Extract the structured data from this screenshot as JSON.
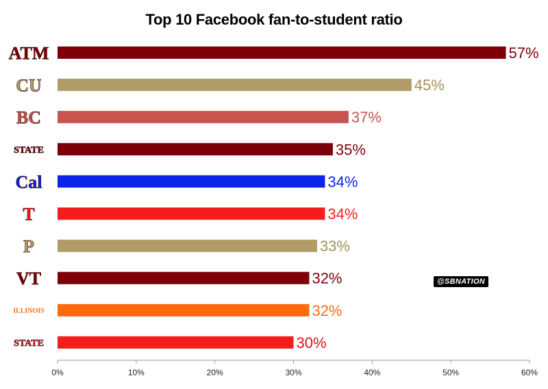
{
  "chart_data": {
    "type": "bar",
    "orientation": "horizontal",
    "title": "Top 10 Facebook fan-to-student ratio",
    "xlabel": "",
    "ylabel": "",
    "xlim": [
      0,
      60
    ],
    "x_ticks": [
      "0%",
      "10%",
      "20%",
      "30%",
      "40%",
      "50%",
      "60%"
    ],
    "grid": false,
    "categories": [
      "ATM",
      "CU",
      "BC",
      "STATE",
      "Cal",
      "T",
      "P",
      "VT",
      "ILLINOIS",
      "STATE"
    ],
    "values": [
      57,
      45,
      37,
      35,
      34,
      34,
      33,
      32,
      32,
      30
    ],
    "value_labels": [
      "57%",
      "45%",
      "37%",
      "35%",
      "34%",
      "34%",
      "33%",
      "32%",
      "32%",
      "30%"
    ],
    "colors": [
      "#7d0008",
      "#b19b66",
      "#c8534f",
      "#7d0008",
      "#0b24e8",
      "#f51c1c",
      "#b19b66",
      "#7d0008",
      "#fb6a0b",
      "#f51c1c"
    ],
    "label_colors": [
      "#7d0008",
      "#a28f5a",
      "#c8534f",
      "#7d0008",
      "#0b24e8",
      "#f51c1c",
      "#a28f5a",
      "#7d0008",
      "#fb6a0b",
      "#e00f0f"
    ]
  },
  "watermark": "@SBNATION"
}
